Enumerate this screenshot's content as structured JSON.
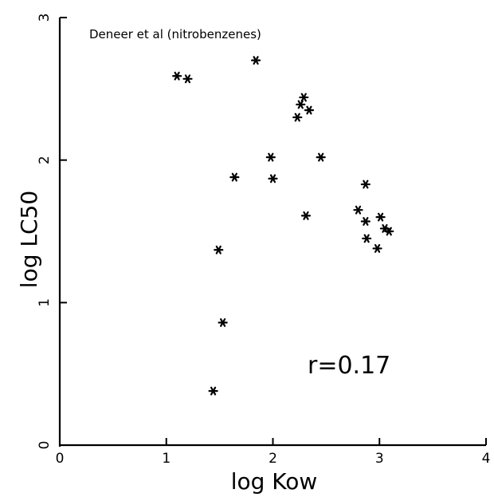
{
  "chart_data": {
    "type": "scatter",
    "title": "Deneer et al (nitrobenzenes)",
    "xlabel": "log Kow",
    "ylabel": "log LC50",
    "xlim": [
      0,
      4
    ],
    "ylim": [
      0,
      3
    ],
    "xticks": [
      "0",
      "1",
      "2",
      "3",
      "4"
    ],
    "yticks": [
      "0",
      "1",
      "2",
      "3"
    ],
    "grid": false,
    "annotation": "r=0.17",
    "marker": "asterisk",
    "points": [
      {
        "x": 1.1,
        "y": 2.59
      },
      {
        "x": 1.2,
        "y": 2.57
      },
      {
        "x": 1.84,
        "y": 2.7
      },
      {
        "x": 2.29,
        "y": 2.44
      },
      {
        "x": 2.26,
        "y": 2.39
      },
      {
        "x": 2.34,
        "y": 2.35
      },
      {
        "x": 2.23,
        "y": 2.3
      },
      {
        "x": 1.98,
        "y": 2.02
      },
      {
        "x": 2.45,
        "y": 2.02
      },
      {
        "x": 1.64,
        "y": 1.88
      },
      {
        "x": 2.0,
        "y": 1.87
      },
      {
        "x": 2.87,
        "y": 1.83
      },
      {
        "x": 2.8,
        "y": 1.65
      },
      {
        "x": 2.31,
        "y": 1.61
      },
      {
        "x": 3.01,
        "y": 1.6
      },
      {
        "x": 2.87,
        "y": 1.57
      },
      {
        "x": 3.05,
        "y": 1.52
      },
      {
        "x": 3.09,
        "y": 1.5
      },
      {
        "x": 2.88,
        "y": 1.45
      },
      {
        "x": 2.98,
        "y": 1.38
      },
      {
        "x": 1.49,
        "y": 1.37
      },
      {
        "x": 1.53,
        "y": 0.86
      },
      {
        "x": 1.44,
        "y": 0.38
      }
    ]
  }
}
